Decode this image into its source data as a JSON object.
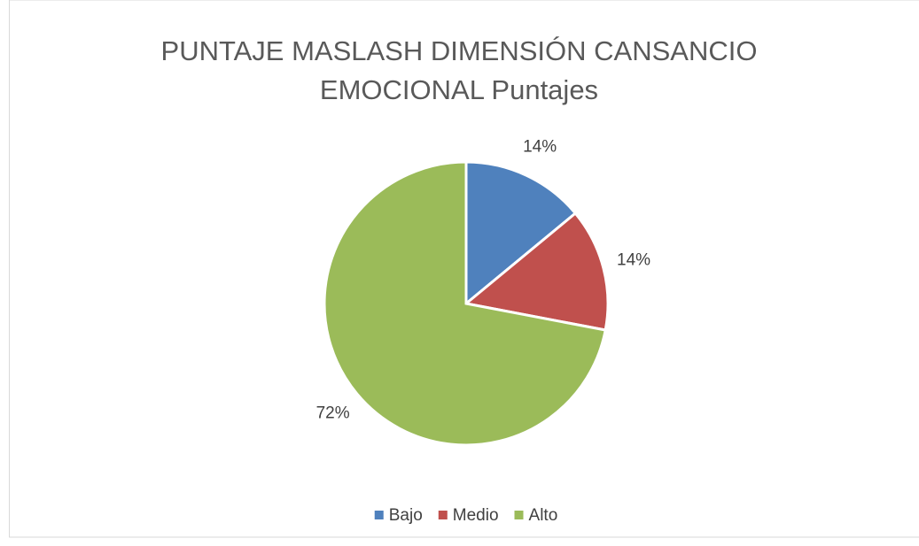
{
  "chart_data": {
    "type": "pie",
    "title": "PUNTAJE MASLASH DIMENSIÓN CANSANCIO EMOCIONAL Puntajes",
    "categories": [
      "Bajo",
      "Medio",
      "Alto"
    ],
    "values": [
      14,
      14,
      72
    ],
    "value_labels": [
      "14%",
      "14%",
      "72%"
    ],
    "colors": [
      "#4f81bd",
      "#c0504d",
      "#9bbb59"
    ],
    "legend": "bottom"
  }
}
